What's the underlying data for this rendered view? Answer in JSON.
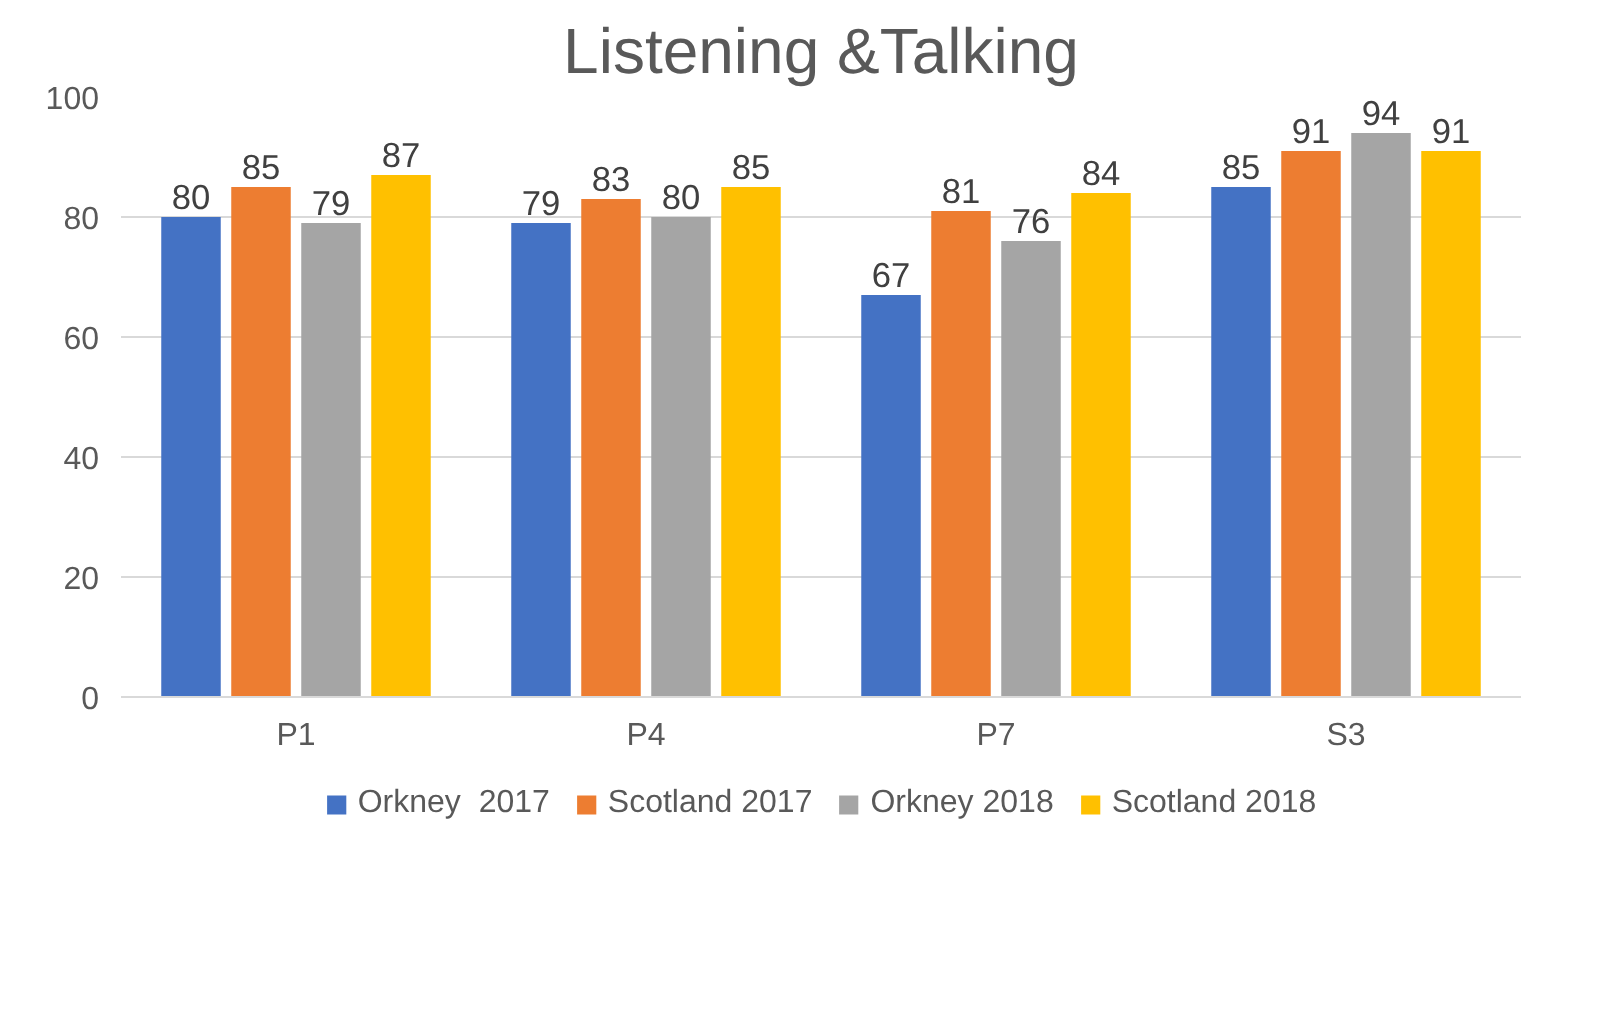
{
  "chart_data": {
    "type": "bar",
    "title": "Listening &Talking",
    "categories": [
      "P1",
      "P4",
      "P7",
      "S3"
    ],
    "series": [
      {
        "name": "Orkney  2017",
        "color": "#4472c4",
        "values": [
          80,
          79,
          67,
          85
        ]
      },
      {
        "name": "Scotland 2017",
        "color": "#ed7d31",
        "values": [
          85,
          83,
          81,
          91
        ]
      },
      {
        "name": "Orkney 2018",
        "color": "#a5a5a5",
        "values": [
          79,
          80,
          76,
          94
        ]
      },
      {
        "name": "Scotland 2018",
        "color": "#ffc000",
        "values": [
          87,
          85,
          84,
          91
        ]
      }
    ],
    "ylim": [
      0,
      100
    ],
    "yticks": [
      0,
      20,
      40,
      60,
      80,
      100
    ],
    "grid": "y",
    "legend": "bottom",
    "data_labels": true
  }
}
